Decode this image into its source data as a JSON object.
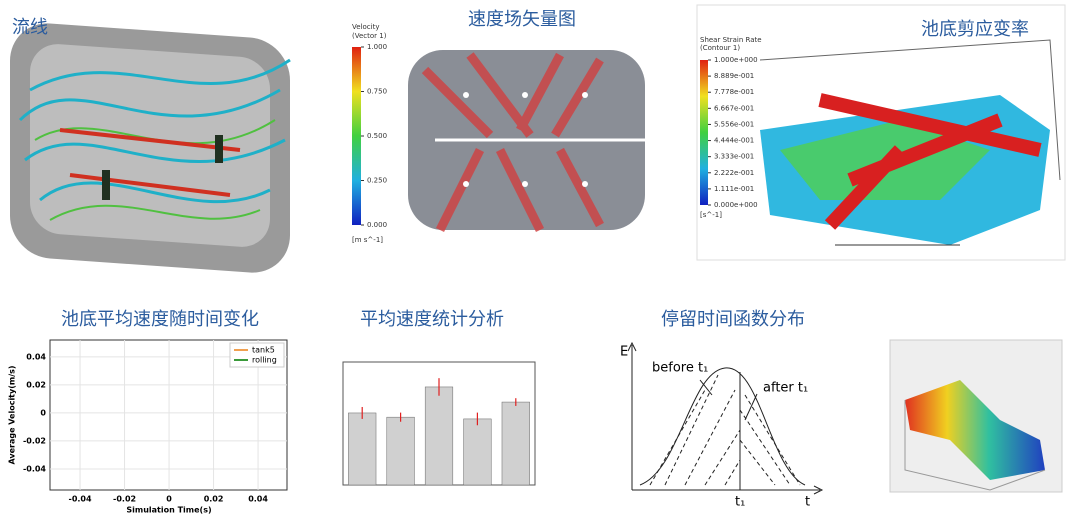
{
  "panels": {
    "streamline": {
      "title": "流线"
    },
    "vector": {
      "title": "速度场矢量图",
      "colorbar": {
        "title": "Velocity",
        "subtitle": "(Vector 1)",
        "unit": "[m s^-1]",
        "ticks": [
          {
            "value": 1,
            "label": "1.000"
          },
          {
            "value": 0.75,
            "label": "0.750"
          },
          {
            "value": 0.5,
            "label": "0.500"
          },
          {
            "value": 0.25,
            "label": "0.250"
          },
          {
            "value": 0,
            "label": "0.000"
          }
        ],
        "lim": [
          0,
          1
        ]
      }
    },
    "shear": {
      "title": "池底剪应变率",
      "colorbar": {
        "title": "Shear Strain Rate",
        "subtitle": "(Contour 1)",
        "unit": "[s^-1]",
        "ticks": [
          {
            "value": 1,
            "label": "1.000e+000"
          },
          {
            "value": 0.8889,
            "label": "8.889e-001"
          },
          {
            "value": 0.7778,
            "label": "7.778e-001"
          },
          {
            "value": 0.6667,
            "label": "6.667e-001"
          },
          {
            "value": 0.5556,
            "label": "5.556e-001"
          },
          {
            "value": 0.4444,
            "label": "4.444e-001"
          },
          {
            "value": 0.3333,
            "label": "3.333e-001"
          },
          {
            "value": 0.2222,
            "label": "2.222e-001"
          },
          {
            "value": 0.1111,
            "label": "1.111e-001"
          },
          {
            "value": 0,
            "label": "0.000e+000"
          }
        ],
        "lim": [
          0,
          1
        ]
      }
    },
    "rtd": {
      "title": "停留时间函数分布",
      "y_label": "E",
      "x_label": "t",
      "t1_label": "t₁",
      "before_label": "before t₁",
      "after_label": "after t₁"
    }
  },
  "chart_data": [
    {
      "type": "line",
      "title": "池底平均速度随时间变化",
      "x_label": "Simulation Time(s)",
      "y_label": "Average Velocity(m/s)",
      "series": [
        {
          "name": "tank5",
          "color": "#f0a050",
          "values": []
        },
        {
          "name": "rolling",
          "color": "#3a9a3a",
          "values": []
        }
      ],
      "xlim": [
        -0.0535,
        0.053
      ],
      "ylim": [
        -0.055,
        0.052
      ],
      "xticks": [
        -0.04,
        -0.02,
        0,
        0.02,
        0.04
      ],
      "yticks": [
        -0.04,
        -0.02,
        0,
        0.02,
        0.04
      ],
      "grid": true,
      "legend": "top-right"
    },
    {
      "type": "bar",
      "title": "平均速度统计分析",
      "categories": [
        null,
        null,
        null,
        null,
        null
      ],
      "values": [
        0.205,
        0.193,
        0.279,
        0.188,
        0.236
      ],
      "errors": [
        0.017,
        0.013,
        0.025,
        0.018,
        0.011
      ],
      "color": "#d0d0d0",
      "error_color": "#e02020",
      "ylim": [
        0,
        0.35
      ]
    }
  ]
}
